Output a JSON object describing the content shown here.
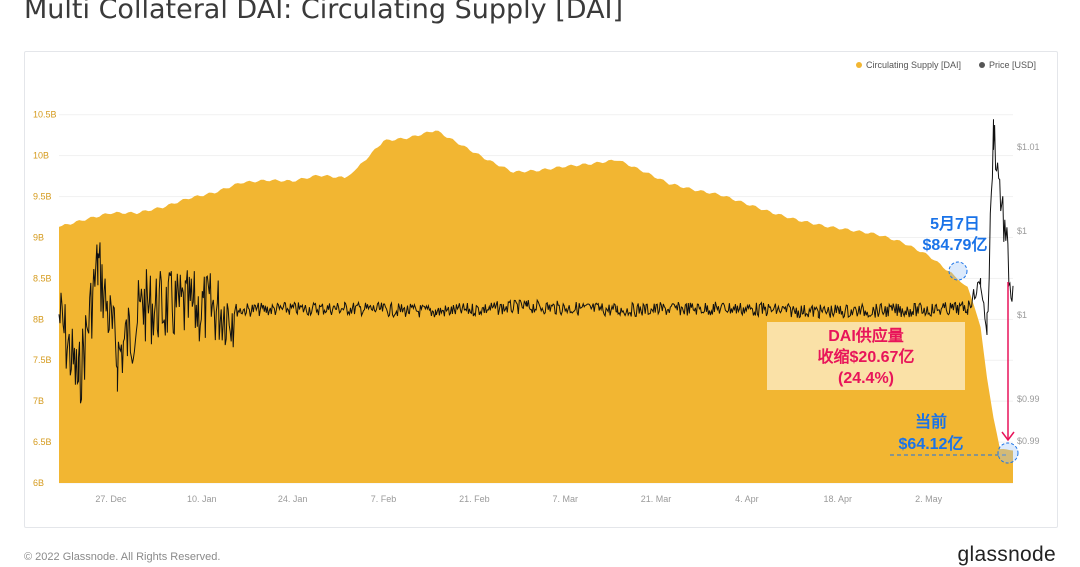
{
  "page": {
    "title": "Multi Collateral DAI: Circulating Supply [DAI]",
    "copyright": "© 2022 Glassnode. All Rights Reserved.",
    "brand": "glassnode"
  },
  "colors": {
    "supply": "#f2b632",
    "price": "#111111",
    "annotation_blue": "#1a73e8",
    "annotation_red": "#e8145a",
    "callout_bg": "#fbe6b4"
  },
  "chart_data": {
    "type": "area",
    "legend": [
      "Circulating Supply [DAI]",
      "Price [USD]"
    ],
    "legend_position": "top-right",
    "x_ticks": [
      "27. Dec",
      "10. Jan",
      "24. Jan",
      "7. Feb",
      "21. Feb",
      "7. Mar",
      "21. Mar",
      "4. Apr",
      "18. Apr",
      "2. May"
    ],
    "x_start": "2021-12-19",
    "x_end": "2022-05-15",
    "y_left_ticks": [
      "6B",
      "6.5B",
      "7B",
      "7.5B",
      "8B",
      "8.5B",
      "9B",
      "9.5B",
      "10B",
      "10.5B"
    ],
    "y_left_range": [
      6.0,
      10.9
    ],
    "y_right_ticks": [
      "$0.99",
      "$0.99",
      "$1",
      "$1",
      "$1.01"
    ],
    "series": [
      {
        "name": "Circulating Supply [DAI]",
        "unit": "DAI (billions)",
        "x": [
          "2021-12-19",
          "2021-12-23",
          "2021-12-27",
          "2021-12-31",
          "2022-01-04",
          "2022-01-08",
          "2022-01-12",
          "2022-01-16",
          "2022-01-20",
          "2022-01-24",
          "2022-01-28",
          "2022-02-01",
          "2022-02-03",
          "2022-02-07",
          "2022-02-11",
          "2022-02-15",
          "2022-02-19",
          "2022-02-23",
          "2022-02-27",
          "2022-03-03",
          "2022-03-07",
          "2022-03-11",
          "2022-03-15",
          "2022-03-19",
          "2022-03-23",
          "2022-03-27",
          "2022-03-31",
          "2022-04-04",
          "2022-04-08",
          "2022-04-12",
          "2022-04-16",
          "2022-04-20",
          "2022-04-24",
          "2022-04-28",
          "2022-05-02",
          "2022-05-06",
          "2022-05-08",
          "2022-05-10",
          "2022-05-11",
          "2022-05-12",
          "2022-05-13",
          "2022-05-15"
        ],
        "values": [
          9.13,
          9.22,
          9.3,
          9.3,
          9.37,
          9.48,
          9.55,
          9.67,
          9.7,
          9.69,
          9.76,
          9.73,
          9.85,
          10.18,
          10.22,
          10.31,
          10.13,
          9.95,
          9.8,
          9.82,
          9.87,
          9.9,
          9.95,
          9.81,
          9.66,
          9.58,
          9.52,
          9.41,
          9.3,
          9.21,
          9.14,
          9.09,
          9.04,
          8.94,
          8.78,
          8.53,
          8.4,
          7.9,
          7.3,
          6.8,
          6.4,
          6.41
        ]
      },
      {
        "name": "Price [USD]",
        "unit": "USD",
        "x": [
          "2021-12-19",
          "2021-12-22",
          "2021-12-25",
          "2021-12-28",
          "2022-01-01",
          "2022-01-15",
          "2022-02-01",
          "2022-02-15",
          "2022-03-01",
          "2022-03-15",
          "2022-04-01",
          "2022-04-15",
          "2022-05-01",
          "2022-05-08",
          "2022-05-10",
          "2022-05-11",
          "2022-05-12",
          "2022-05-15"
        ],
        "values": [
          1.0,
          0.996,
          1.003,
          0.9975,
          1.0005,
          1.0003,
          1.0004,
          1.0002,
          1.0005,
          1.0003,
          1.0004,
          1.0002,
          1.0003,
          1.0004,
          1.002,
          0.999,
          1.011,
          1.0005
        ]
      }
    ],
    "annotations": {
      "may7_date": "5月7日",
      "may7_value": "$84.79亿",
      "shrink_line1": "DAI供应量",
      "shrink_line2": "收缩$20.67亿",
      "shrink_line3": "(24.4%)",
      "current_label": "当前",
      "current_value": "$64.12亿"
    }
  }
}
